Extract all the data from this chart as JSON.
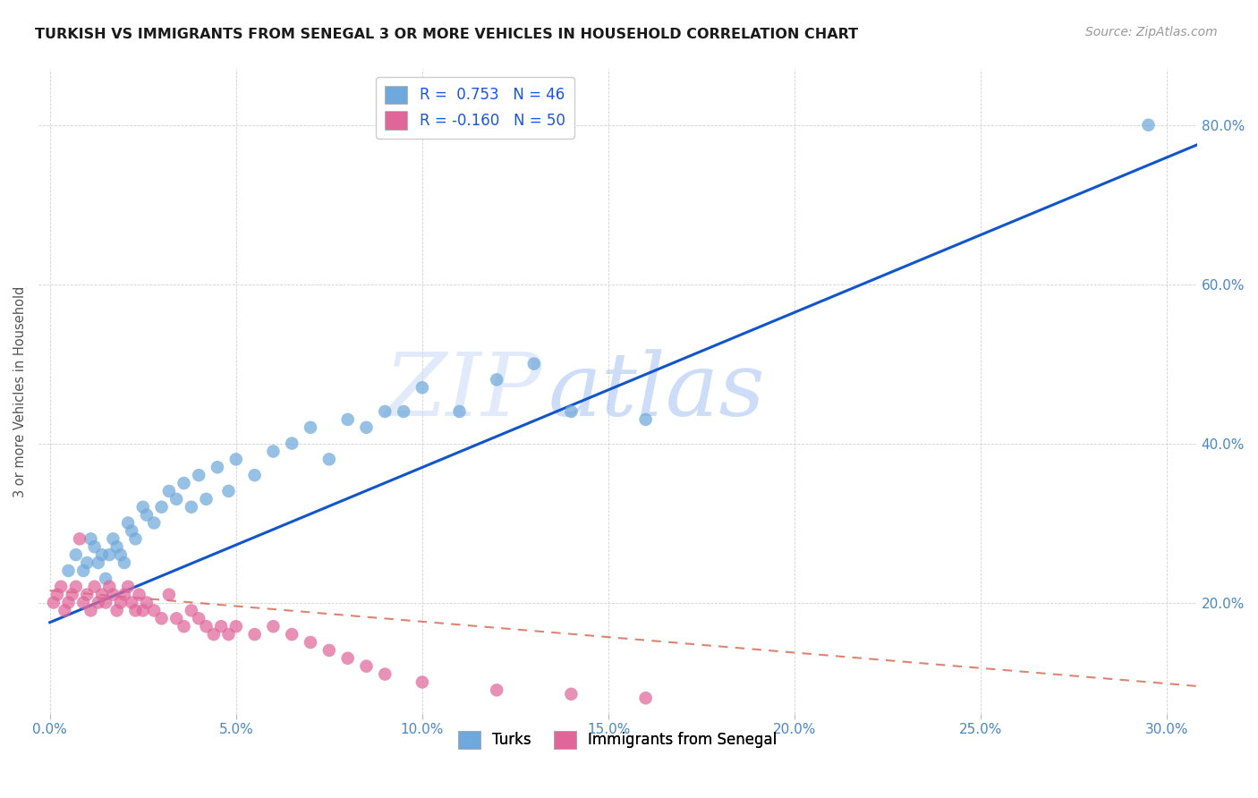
{
  "title": "TURKISH VS IMMIGRANTS FROM SENEGAL 3 OR MORE VEHICLES IN HOUSEHOLD CORRELATION CHART",
  "source": "Source: ZipAtlas.com",
  "xlabel_ticks": [
    0.0,
    0.05,
    0.1,
    0.15,
    0.2,
    0.25,
    0.3
  ],
  "ylabel_ticks": [
    0.2,
    0.4,
    0.6,
    0.8
  ],
  "xlim": [
    -0.003,
    0.308
  ],
  "ylim": [
    0.06,
    0.87
  ],
  "watermark_zip": "ZIP",
  "watermark_atlas": "atlas",
  "legend_blue_R": "R =  0.753",
  "legend_blue_N": "N = 46",
  "legend_pink_R": "R = -0.160",
  "legend_pink_N": "N = 50",
  "legend_label_blue": "Turks",
  "legend_label_pink": "Immigrants from Senegal",
  "blue_color": "#6fa8dc",
  "pink_color": "#e06699",
  "blue_line_color": "#1155cc",
  "pink_line_color": "#cc4125",
  "turks_x": [
    0.005,
    0.007,
    0.009,
    0.01,
    0.011,
    0.012,
    0.013,
    0.014,
    0.015,
    0.016,
    0.017,
    0.018,
    0.019,
    0.02,
    0.021,
    0.022,
    0.023,
    0.025,
    0.026,
    0.028,
    0.03,
    0.032,
    0.034,
    0.036,
    0.038,
    0.04,
    0.042,
    0.045,
    0.048,
    0.05,
    0.055,
    0.06,
    0.065,
    0.07,
    0.075,
    0.08,
    0.085,
    0.09,
    0.095,
    0.1,
    0.11,
    0.12,
    0.13,
    0.14,
    0.16,
    0.295
  ],
  "turks_y": [
    0.24,
    0.26,
    0.24,
    0.25,
    0.28,
    0.27,
    0.25,
    0.26,
    0.23,
    0.26,
    0.28,
    0.27,
    0.26,
    0.25,
    0.3,
    0.29,
    0.28,
    0.32,
    0.31,
    0.3,
    0.32,
    0.34,
    0.33,
    0.35,
    0.32,
    0.36,
    0.33,
    0.37,
    0.34,
    0.38,
    0.36,
    0.39,
    0.4,
    0.42,
    0.38,
    0.43,
    0.42,
    0.44,
    0.44,
    0.47,
    0.44,
    0.48,
    0.5,
    0.44,
    0.43,
    0.8
  ],
  "senegal_x": [
    0.001,
    0.002,
    0.003,
    0.004,
    0.005,
    0.006,
    0.007,
    0.008,
    0.009,
    0.01,
    0.011,
    0.012,
    0.013,
    0.014,
    0.015,
    0.016,
    0.017,
    0.018,
    0.019,
    0.02,
    0.021,
    0.022,
    0.023,
    0.024,
    0.025,
    0.026,
    0.028,
    0.03,
    0.032,
    0.034,
    0.036,
    0.038,
    0.04,
    0.042,
    0.044,
    0.046,
    0.048,
    0.05,
    0.055,
    0.06,
    0.065,
    0.07,
    0.075,
    0.08,
    0.085,
    0.09,
    0.1,
    0.12,
    0.14,
    0.16
  ],
  "senegal_y": [
    0.2,
    0.21,
    0.22,
    0.19,
    0.2,
    0.21,
    0.22,
    0.28,
    0.2,
    0.21,
    0.19,
    0.22,
    0.2,
    0.21,
    0.2,
    0.22,
    0.21,
    0.19,
    0.2,
    0.21,
    0.22,
    0.2,
    0.19,
    0.21,
    0.19,
    0.2,
    0.19,
    0.18,
    0.21,
    0.18,
    0.17,
    0.19,
    0.18,
    0.17,
    0.16,
    0.17,
    0.16,
    0.17,
    0.16,
    0.17,
    0.16,
    0.15,
    0.14,
    0.13,
    0.12,
    0.11,
    0.1,
    0.09,
    0.085,
    0.08
  ],
  "blue_trend_x": [
    0.0,
    0.308
  ],
  "blue_trend_y": [
    0.175,
    0.775
  ],
  "pink_trend_x": [
    0.0,
    0.308
  ],
  "pink_trend_y": [
    0.215,
    0.095
  ]
}
